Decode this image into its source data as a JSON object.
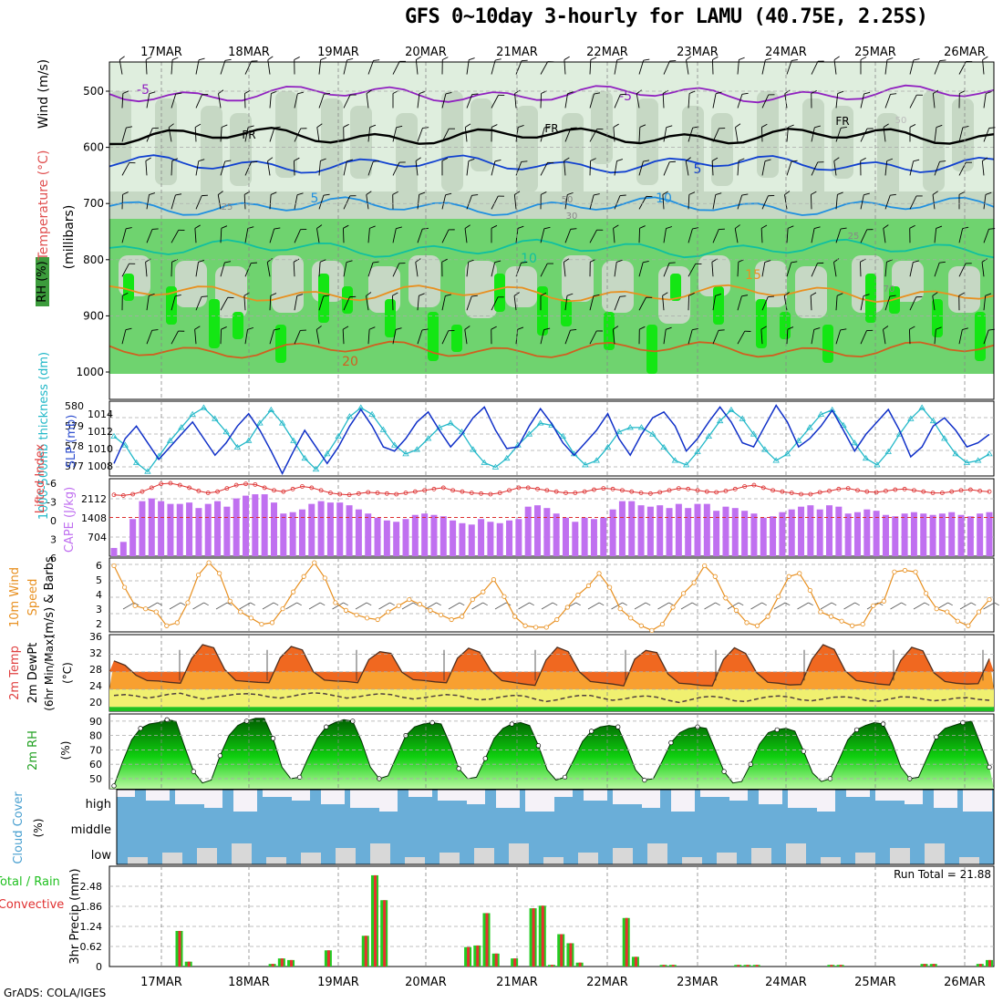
{
  "title": "GFS 0~10day 3-hourly for LAMU (40.75E, 2.25S)",
  "footer": "GrADS: COLA/IGES",
  "date_labels": [
    "17MAR",
    "18MAR",
    "19MAR",
    "20MAR",
    "21MAR",
    "22MAR",
    "23MAR",
    "24MAR",
    "25MAR",
    "26MAR"
  ],
  "colors": {
    "rh_light": "#dfeede",
    "rh_mid": "#c6d8c4",
    "rh_green": "#6fd36f",
    "rh_bright": "#14e614",
    "thickness_line": "#22b8c8",
    "slp_line": "#1030c8",
    "lifted_line": "#dd3030",
    "cape_bar": "#c070f0",
    "wind_line": "#e89020",
    "temp_top": "#e82810",
    "temp_orange": "#f8a030",
    "dew_yellow": "#f0f070",
    "rh_dark": "#00a000",
    "cloud_blue": "#6aaed8",
    "cloud_white": "#f5f2f8",
    "cloud_gray": "#d8d8d8",
    "precip_green": "#22cc22",
    "precip_red": "#e83030"
  },
  "chart_data": [
    {
      "panel": "upper-air",
      "type": "heatmap",
      "ylabel_parts": [
        "RH (%)",
        "Temperature (°C)",
        "Wind (m/s)"
      ],
      "yunit": "(millibars)",
      "yticks": [
        "500",
        "600",
        "700",
        "800",
        "900",
        "1000"
      ],
      "ylim": [
        1000,
        450
      ],
      "contour_labels": [
        "-5",
        "-5",
        "FR",
        "FR",
        "FR",
        "5",
        "5",
        "10",
        "10",
        "15",
        "20",
        "25",
        "25",
        "50",
        "50",
        "30",
        "70"
      ],
      "isotherms": [
        {
          "label": "-5",
          "pressure": 505,
          "color": "#9020c0"
        },
        {
          "label": "FR",
          "pressure": 580,
          "color": "#000000"
        },
        {
          "label": "5",
          "pressure": 630,
          "color": "#1040d0"
        },
        {
          "label": "10",
          "pressure": 705,
          "color": "#2090e0"
        },
        {
          "label": "15",
          "pressure": 780,
          "color": "#10c0a0"
        },
        {
          "label": "20",
          "pressure": 860,
          "color": "#e89020"
        },
        {
          "label": "25",
          "pressure": 960,
          "color": "#d06020"
        }
      ]
    },
    {
      "panel": "thickness-slp",
      "type": "line",
      "ylabel_left": "1000-500mb thickness (dm)",
      "ylabel_right": "SLP (mb)",
      "thickness_ticks": [
        "580",
        "579",
        "578",
        "577"
      ],
      "slp_ticks": [
        "1014",
        "1012",
        "1010",
        "1008"
      ],
      "thickness_ylim": [
        576.8,
        580.2
      ],
      "slp_ylim": [
        1006.5,
        1015.5
      ],
      "series": [
        {
          "name": "1000-500mb thickness (dm)",
          "values": [
            578.6,
            578.2,
            577.4,
            577.0,
            577.7,
            578.4,
            579.0,
            579.6,
            579.9,
            579.4,
            578.8,
            578.1,
            578.4,
            579.2,
            579.8,
            579.2,
            578.4,
            577.6,
            577.1,
            577.8,
            578.6,
            579.5,
            579.9,
            579.6,
            578.9,
            578.2,
            577.8,
            578.0,
            578.5,
            579.0,
            579.2,
            578.8,
            578.0,
            577.4,
            577.2,
            577.6,
            578.2,
            578.7,
            579.2,
            579.1,
            578.6,
            577.8,
            577.3,
            577.5,
            578.1,
            578.8,
            579.0,
            579.0,
            578.7,
            578.1,
            577.5,
            577.3,
            577.9,
            578.6,
            579.3,
            579.8,
            579.4,
            578.7,
            578.0,
            577.5,
            577.8,
            578.4,
            579.0,
            579.6,
            579.8,
            579.1,
            578.3,
            577.6,
            577.3,
            577.9,
            578.7,
            579.4,
            579.9,
            579.3,
            578.5,
            577.8,
            577.4,
            577.5,
            577.8
          ]
        },
        {
          "name": "SLP (mb)",
          "values": [
            1008.0,
            1011.0,
            1012.5,
            1010.5,
            1008.5,
            1010.0,
            1011.5,
            1013.0,
            1011.0,
            1009.0,
            1010.5,
            1012.5,
            1014.0,
            1012.0,
            1009.5,
            1006.8,
            1009.5,
            1012.0,
            1010.0,
            1008.0,
            1010.0,
            1012.5,
            1014.5,
            1012.5,
            1010.0,
            1009.5,
            1011.0,
            1013.0,
            1014.2,
            1012.0,
            1010.0,
            1011.5,
            1013.5,
            1014.8,
            1012.0,
            1009.8,
            1010.0,
            1012.5,
            1014.6,
            1012.8,
            1010.5,
            1009.0,
            1010.5,
            1012.0,
            1014.0,
            1011.0,
            1009.0,
            1011.5,
            1013.5,
            1014.2,
            1012.5,
            1009.5,
            1011.0,
            1013.0,
            1014.8,
            1013.0,
            1010.5,
            1010.0,
            1012.5,
            1015.0,
            1013.0,
            1010.0,
            1011.0,
            1012.5,
            1014.4,
            1012.0,
            1009.5,
            1011.5,
            1013.0,
            1014.5,
            1012.0,
            1008.8,
            1010.0,
            1012.5,
            1013.5,
            1012.0,
            1010.0,
            1010.5,
            1011.5
          ]
        }
      ]
    },
    {
      "panel": "lifted-cape",
      "type": "bar",
      "ylabel_left": "Lifted Index",
      "ylabel_right": "CAPE (J/kg)",
      "li_ticks": [
        "-6",
        "-3",
        "0",
        "3",
        "6"
      ],
      "cape_ticks": [
        "2112",
        "1408",
        "704"
      ],
      "li_ylim": [
        -6,
        6
      ],
      "cape_ylim": [
        0,
        2816
      ],
      "series": [
        {
          "name": "CAPE",
          "values": [
            300,
            520,
            1350,
            2000,
            2100,
            2000,
            1900,
            1900,
            1950,
            1750,
            1900,
            2000,
            1800,
            2100,
            2200,
            2250,
            2250,
            1950,
            1550,
            1600,
            1700,
            1900,
            2000,
            1950,
            1950,
            1850,
            1700,
            1550,
            1400,
            1300,
            1250,
            1350,
            1500,
            1550,
            1500,
            1450,
            1300,
            1200,
            1150,
            1350,
            1250,
            1200,
            1300,
            1350,
            1800,
            1850,
            1750,
            1550,
            1400,
            1250,
            1400,
            1350,
            1400,
            1700,
            2000,
            2000,
            1850,
            1800,
            1850,
            1750,
            1900,
            1750,
            1900,
            1900,
            1650,
            1800,
            1750,
            1650,
            1550,
            1400,
            1450,
            1600,
            1700,
            1800,
            1850,
            1700,
            1850,
            1800,
            1550,
            1600,
            1700,
            1650,
            1500,
            1450,
            1550,
            1600,
            1550,
            1500,
            1550,
            1600,
            1500,
            1450,
            1550,
            1600
          ]
        },
        {
          "name": "Lifted Index",
          "values": [
            -3.5,
            -3.4,
            -3.6,
            -4.0,
            -4.6,
            -5.2,
            -5.3,
            -5.0,
            -4.6,
            -4.1,
            -3.8,
            -4.0,
            -4.5,
            -5.0,
            -5.2,
            -5.1,
            -4.6,
            -4.2,
            -4.0,
            -4.4,
            -4.8,
            -4.6,
            -4.2,
            -3.8,
            -3.6,
            -3.5,
            -3.7,
            -3.9,
            -3.8,
            -3.7,
            -3.6,
            -3.8,
            -4.0,
            -4.2,
            -4.4,
            -4.6,
            -4.2,
            -4.0,
            -3.8,
            -3.7,
            -3.6,
            -3.8,
            -4.2,
            -4.6,
            -4.6,
            -4.4,
            -4.2,
            -4.0,
            -3.8,
            -3.8,
            -4.0,
            -4.3,
            -4.5,
            -4.4,
            -4.2,
            -4.0,
            -3.8,
            -3.7,
            -3.9,
            -4.2,
            -4.5,
            -4.4,
            -4.2,
            -4.0,
            -3.9,
            -4.1,
            -4.4,
            -4.8,
            -5.0,
            -4.6,
            -4.2,
            -4.0,
            -3.8,
            -3.6,
            -3.6,
            -3.9,
            -4.1,
            -4.4,
            -4.5,
            -4.2,
            -4.0,
            -3.9,
            -4.1,
            -4.3,
            -4.4,
            -4.2,
            -4.0,
            -3.8,
            -3.8,
            -4.0,
            -4.2,
            -4.3,
            -4.1,
            -4.0
          ]
        }
      ]
    },
    {
      "panel": "10m-wind",
      "type": "line",
      "ylabel": "10m Wind Speed (m/s) & Barbs",
      "yticks": [
        "6",
        "5",
        "4",
        "3",
        "2"
      ],
      "ylim": [
        1.5,
        6.3
      ],
      "series": [
        {
          "name": "10m Wind Speed",
          "values": [
            5.8,
            4.4,
            3.2,
            3.0,
            2.8,
            1.9,
            2.1,
            3.4,
            5.2,
            6.0,
            5.3,
            3.5,
            2.8,
            2.4,
            2.0,
            2.1,
            3.0,
            4.1,
            5.1,
            6.0,
            5.0,
            3.4,
            2.9,
            2.6,
            2.4,
            2.3,
            2.8,
            3.2,
            3.6,
            3.3,
            2.9,
            2.6,
            2.3,
            2.5,
            3.6,
            4.1,
            4.9,
            3.8,
            2.5,
            1.9,
            1.8,
            1.8,
            2.3,
            3.1,
            3.9,
            4.5,
            5.3,
            4.4,
            3.0,
            2.4,
            1.9,
            1.6,
            2.0,
            3.1,
            4.0,
            4.7,
            5.8,
            5.1,
            3.7,
            2.9,
            2.1,
            1.9,
            2.5,
            3.8,
            5.1,
            5.3,
            4.2,
            2.8,
            2.5,
            2.2,
            1.9,
            2.0,
            3.2,
            3.5,
            5.4,
            5.5,
            5.4,
            4.0,
            3.0,
            2.8,
            2.2,
            1.9,
            2.8,
            3.6
          ]
        }
      ]
    },
    {
      "panel": "2m-temp",
      "type": "area",
      "ylabel": "2m Temp 2m DewPt (6hr Min/Max) (°C)",
      "yticks": [
        "36",
        "32",
        "28",
        "24",
        "20"
      ],
      "ylim": [
        19,
        36.5
      ],
      "series": [
        {
          "name": "2m Temp",
          "values": [
            30.5,
            29.5,
            27.2,
            26.0,
            25.9,
            25.6,
            25.4,
            31.0,
            34.2,
            33.5,
            28.5,
            26.0,
            25.8,
            25.6,
            25.5,
            31.2,
            33.8,
            33.0,
            28.0,
            26.1,
            25.9,
            25.8,
            25.5,
            30.8,
            32.6,
            32.2,
            27.9,
            26.2,
            26.0,
            25.7,
            25.5,
            31.1,
            33.4,
            32.5,
            28.3,
            26.0,
            25.6,
            25.2,
            24.9,
            30.7,
            33.6,
            32.6,
            28.0,
            25.8,
            25.5,
            25.2,
            24.8,
            30.9,
            32.9,
            32.4,
            27.5,
            25.4,
            25.2,
            24.9,
            24.8,
            30.8,
            33.5,
            32.2,
            27.8,
            25.6,
            25.4,
            25.0,
            25.1,
            30.9,
            34.2,
            33.1,
            28.2,
            26.0,
            25.6,
            25.2,
            25.0,
            30.6,
            33.6,
            32.8,
            27.8,
            25.8,
            25.4,
            25.2,
            25.3,
            31.0
          ]
        },
        {
          "name": "2m DewPt",
          "values": [
            22.6,
            22.8,
            22.5,
            22.0,
            22.4,
            22.9,
            23.1,
            22.4,
            21.8,
            22.2,
            22.5,
            22.9,
            23.0,
            22.8,
            22.3,
            22.0,
            22.4,
            22.9,
            23.2,
            23.0,
            22.5,
            22.0,
            22.3,
            22.7,
            23.0,
            22.8,
            22.2,
            21.8,
            22.1,
            22.5,
            22.8,
            22.6,
            22.0,
            21.6,
            21.8,
            22.3,
            22.6,
            22.5,
            21.8,
            21.2,
            21.6,
            22.2,
            22.6,
            22.6,
            22.0,
            21.5,
            21.8,
            22.3,
            22.5,
            22.2,
            21.5,
            21.0,
            21.6,
            22.2,
            22.4,
            22.1,
            21.4,
            21.2,
            21.8,
            22.3,
            22.5,
            22.2,
            21.6,
            21.4,
            21.8,
            22.2,
            22.3,
            22.0,
            21.4,
            21.3,
            21.8,
            22.3,
            22.2,
            21.8,
            21.4,
            21.6,
            22.0,
            22.1,
            21.7,
            21.5
          ]
        }
      ]
    },
    {
      "panel": "2m-rh",
      "type": "area",
      "ylabel": "2m RH (%)",
      "yticks": [
        "90",
        "80",
        "70",
        "60",
        "50"
      ],
      "ylim": [
        43,
        95
      ],
      "series": [
        {
          "name": "2m RH",
          "values": [
            45,
            62,
            77,
            85,
            88,
            89,
            91,
            90,
            72,
            55,
            47,
            49,
            66,
            80,
            87,
            90,
            92,
            92,
            78,
            58,
            50,
            51,
            65,
            78,
            86,
            89,
            91,
            90,
            76,
            58,
            50,
            52,
            66,
            80,
            86,
            88,
            89,
            88,
            74,
            57,
            50,
            51,
            64,
            78,
            85,
            88,
            89,
            87,
            73,
            56,
            49,
            51,
            63,
            76,
            83,
            86,
            87,
            86,
            72,
            56,
            49,
            50,
            62,
            75,
            82,
            85,
            86,
            85,
            70,
            55,
            47,
            48,
            60,
            74,
            82,
            84,
            85,
            83,
            69,
            54,
            48,
            50,
            63,
            77,
            84,
            87,
            89,
            88,
            75,
            58,
            50,
            51,
            65,
            79,
            85,
            87,
            89,
            90,
            74,
            58
          ]
        }
      ]
    },
    {
      "panel": "cloud-cover",
      "type": "bar",
      "ylabel": "Cloud Cover (%)",
      "level_labels": [
        "high",
        "middle",
        "low"
      ]
    },
    {
      "panel": "precip",
      "type": "bar",
      "ylabel": "3hr Precip (mm)",
      "left_label_1": "Total / Rain",
      "left_label_2": "Convective",
      "yticks": [
        "2.48",
        "1.86",
        "1.24",
        "0.62",
        "0"
      ],
      "ylim": [
        0,
        3.1
      ],
      "run_total": "Run Total = 21.88",
      "values": [
        0,
        0,
        0,
        0,
        0,
        0,
        0,
        1.1,
        0.15,
        0,
        0,
        0,
        0,
        0,
        0,
        0,
        0,
        0.08,
        0.25,
        0.2,
        0,
        0,
        0,
        0.5,
        0,
        0,
        0,
        0.95,
        2.82,
        2.05,
        0,
        0,
        0,
        0,
        0,
        0,
        0,
        0,
        0.6,
        0.65,
        1.65,
        0.4,
        0,
        0.25,
        0,
        1.8,
        1.88,
        0.05,
        1.0,
        0.72,
        0.12,
        0,
        0,
        0,
        0,
        1.5,
        0.3,
        0,
        0,
        0.05,
        0.05,
        0,
        0,
        0,
        0,
        0,
        0,
        0.05,
        0.05,
        0.05,
        0,
        0,
        0,
        0,
        0,
        0,
        0,
        0.05,
        0.05,
        0,
        0,
        0,
        0,
        0,
        0,
        0,
        0,
        0.08,
        0.08,
        0,
        0,
        0,
        0,
        0.08,
        0.2
      ]
    }
  ]
}
